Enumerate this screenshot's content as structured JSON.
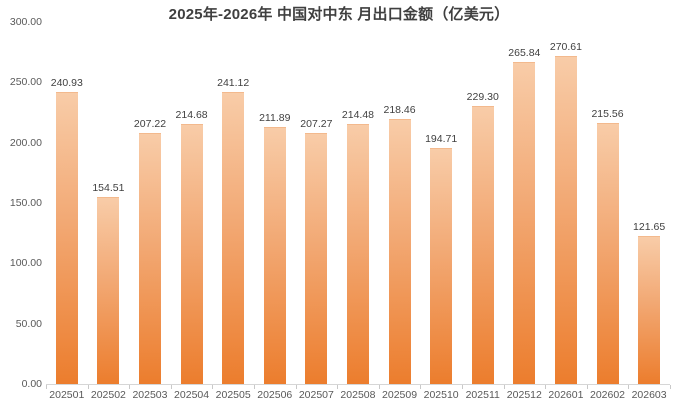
{
  "chart_data": {
    "type": "bar",
    "title": "2025年-2026年 中国对中东 月出口金额（亿美元）",
    "categories": [
      "202501",
      "202502",
      "202503",
      "202504",
      "202505",
      "202506",
      "202507",
      "202508",
      "202509",
      "202510",
      "202511",
      "202512",
      "202601",
      "202602",
      "202603"
    ],
    "values": [
      240.93,
      154.51,
      207.22,
      214.68,
      241.12,
      211.89,
      207.27,
      214.48,
      218.46,
      194.71,
      229.3,
      265.84,
      270.61,
      215.56,
      121.65
    ],
    "value_labels": [
      "240.93",
      "154.51",
      "207.22",
      "214.68",
      "241.12",
      "211.89",
      "207.27",
      "214.48",
      "218.46",
      "194.71",
      "229.30",
      "265.84",
      "270.61",
      "215.56",
      "121.65"
    ],
    "xlabel": "",
    "ylabel": "",
    "ylim": [
      0,
      300
    ],
    "y_ticks": [
      "300.00",
      "250.00",
      "200.00",
      "150.00",
      "100.00",
      "50.00",
      "0.00"
    ],
    "grid": false,
    "legend": "none",
    "colors": {
      "bar_gradient_top": "#F8CCA8",
      "bar_gradient_bottom": "#EC7D2D",
      "title_text": "#3F3F3F",
      "axis_text": "#595959",
      "value_label_text": "#404040",
      "axis_line": "#D6D6D6",
      "background": "#FFFFFF"
    }
  }
}
